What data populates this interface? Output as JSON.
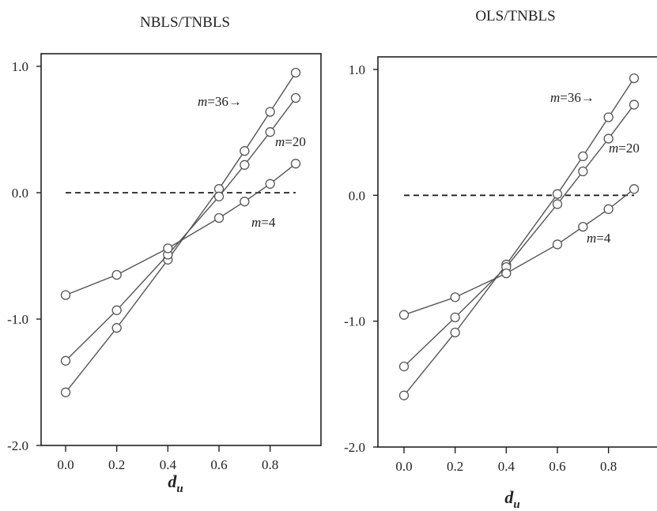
{
  "chart_data": [
    {
      "type": "line",
      "title": "NBLS/TNBLS",
      "xlabel": "d",
      "xlabel_sub": "u",
      "ylabel": "",
      "xlim": [
        -0.1,
        0.95
      ],
      "ylim": [
        -2.0,
        1.1
      ],
      "xticks": [
        "0.0",
        "0.2",
        "0.4",
        "0.6",
        "0.8"
      ],
      "yticks": [
        "1.0",
        "0.0",
        "-1.0",
        "-2.0"
      ],
      "reference_line": {
        "y": 0.0,
        "x_start": 0.0,
        "x_end": 0.9,
        "style": "dashed"
      },
      "grid": false,
      "series": [
        {
          "name": "m=36",
          "label_m": "m",
          "label_rest": "=36→",
          "x": [
            0.0,
            0.2,
            0.4,
            0.6,
            0.7,
            0.8,
            0.9
          ],
          "values": [
            -1.58,
            -1.07,
            -0.53,
            0.03,
            0.33,
            0.64,
            0.95
          ]
        },
        {
          "name": "m=20",
          "label_m": "m",
          "label_rest": "=20",
          "x": [
            0.0,
            0.2,
            0.4,
            0.6,
            0.7,
            0.8,
            0.9
          ],
          "values": [
            -1.33,
            -0.93,
            -0.49,
            -0.03,
            0.22,
            0.48,
            0.75
          ]
        },
        {
          "name": "m=4",
          "label_m": "m",
          "label_rest": "=4",
          "x": [
            0.0,
            0.2,
            0.4,
            0.6,
            0.7,
            0.8,
            0.9
          ],
          "values": [
            -0.81,
            -0.65,
            -0.44,
            -0.2,
            -0.07,
            0.07,
            0.23
          ]
        }
      ]
    },
    {
      "type": "line",
      "title": "OLS/TNBLS",
      "xlabel": "d",
      "xlabel_sub": "u",
      "ylabel": "",
      "xlim": [
        -0.1,
        0.95
      ],
      "ylim": [
        -2.0,
        1.1
      ],
      "xticks": [
        "0.0",
        "0.2",
        "0.4",
        "0.6",
        "0.8"
      ],
      "yticks": [
        "1.0",
        "0.0",
        "-1.0",
        "-2.0"
      ],
      "reference_line": {
        "y": 0.0,
        "x_start": 0.0,
        "x_end": 0.9,
        "style": "dashed"
      },
      "grid": false,
      "series": [
        {
          "name": "m=36",
          "label_m": "m",
          "label_rest": "=36→",
          "x": [
            0.0,
            0.2,
            0.4,
            0.6,
            0.7,
            0.8,
            0.9
          ],
          "values": [
            -1.59,
            -1.09,
            -0.55,
            0.01,
            0.31,
            0.62,
            0.93
          ]
        },
        {
          "name": "m=20",
          "label_m": "m",
          "label_rest": "=20",
          "x": [
            0.0,
            0.2,
            0.4,
            0.6,
            0.7,
            0.8,
            0.9
          ],
          "values": [
            -1.36,
            -0.97,
            -0.57,
            -0.07,
            0.19,
            0.45,
            0.72
          ]
        },
        {
          "name": "m=4",
          "label_m": "m",
          "label_rest": "=4",
          "x": [
            0.0,
            0.2,
            0.4,
            0.6,
            0.7,
            0.8,
            0.9
          ],
          "values": [
            -0.95,
            -0.81,
            -0.62,
            -0.39,
            -0.25,
            -0.11,
            0.05
          ]
        }
      ]
    }
  ]
}
